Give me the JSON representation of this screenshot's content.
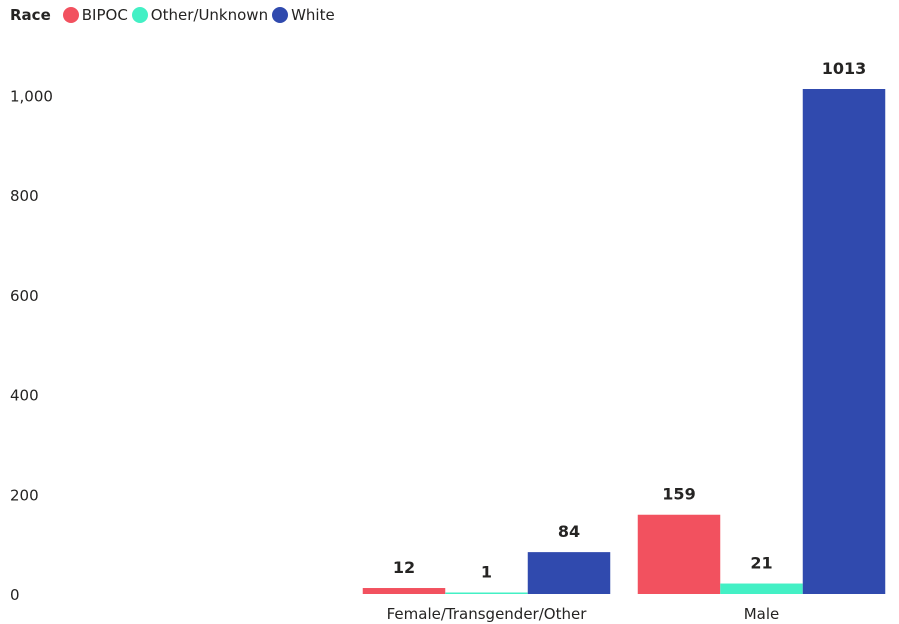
{
  "legend": {
    "title": "Race",
    "items": [
      {
        "label": "BIPOC",
        "color": "#F2515F"
      },
      {
        "label": "Other/Unknown",
        "color": "#43F0C5"
      },
      {
        "label": "White",
        "color": "#304AAE"
      }
    ]
  },
  "chart_data": {
    "type": "bar",
    "categories": [
      "",
      "Female/Transgender/Other",
      "Male"
    ],
    "series": [
      {
        "name": "BIPOC",
        "color": "#F2515F",
        "values": [
          null,
          12,
          159
        ]
      },
      {
        "name": "Other/Unknown",
        "color": "#43F0C5",
        "values": [
          null,
          1,
          21
        ]
      },
      {
        "name": "White",
        "color": "#304AAE",
        "values": [
          null,
          84,
          1013
        ]
      }
    ],
    "yticks": [
      0,
      200,
      400,
      600,
      800,
      1000
    ],
    "ytick_labels": [
      "0",
      "200",
      "400",
      "600",
      "800",
      "1,000"
    ],
    "ylim": [
      0,
      1013
    ],
    "title": "",
    "xlabel": "",
    "ylabel": "",
    "grid": false,
    "legend_position": "top-left"
  }
}
